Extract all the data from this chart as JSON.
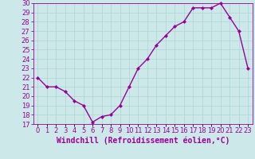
{
  "hours": [
    0,
    1,
    2,
    3,
    4,
    5,
    6,
    7,
    8,
    9,
    10,
    11,
    12,
    13,
    14,
    15,
    16,
    17,
    18,
    19,
    20,
    21,
    22,
    23
  ],
  "y_values": [
    22,
    21,
    21,
    20.5,
    19.5,
    19,
    17.2,
    17.8,
    18,
    19,
    21,
    23,
    24,
    25.5,
    26.5,
    27.5,
    28,
    29.5,
    29.5,
    29.5,
    30,
    28.5,
    27,
    23
  ],
  "line_color": "#990099",
  "marker": "D",
  "markersize": 2.0,
  "linewidth": 1.0,
  "bg_color": "#cce8e8",
  "grid_color": "#b0d8d8",
  "xlabel": "Windchill (Refroidissement éolien,°C)",
  "xlabel_color": "#990099",
  "tick_color": "#990099",
  "label_color": "#990099",
  "ylim_min": 17,
  "ylim_max": 30,
  "yticks": [
    17,
    18,
    19,
    20,
    21,
    22,
    23,
    24,
    25,
    26,
    27,
    28,
    29,
    30
  ],
  "xtick_labels": [
    "0",
    "1",
    "2",
    "3",
    "4",
    "5",
    "6",
    "7",
    "8",
    "9",
    "10",
    "11",
    "12",
    "13",
    "14",
    "15",
    "16",
    "17",
    "18",
    "19",
    "20",
    "21",
    "22",
    "23"
  ],
  "tick_fontsize": 6,
  "xlabel_fontsize": 7
}
